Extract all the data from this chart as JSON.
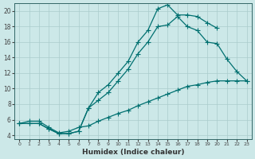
{
  "xlabel": "Humidex (Indice chaleur)",
  "bg_color": "#cce8e8",
  "grid_color": "#aacccc",
  "line_color": "#007070",
  "xlim": [
    -0.5,
    23.5
  ],
  "ylim": [
    3.5,
    21
  ],
  "xticks": [
    0,
    1,
    2,
    3,
    4,
    5,
    6,
    7,
    8,
    9,
    10,
    11,
    12,
    13,
    14,
    15,
    16,
    17,
    18,
    19,
    20,
    21,
    22,
    23
  ],
  "yticks": [
    4,
    6,
    8,
    10,
    12,
    14,
    16,
    18,
    20
  ],
  "curve1_x": [
    0,
    1,
    2,
    3,
    4,
    5,
    6,
    7,
    8,
    9,
    10,
    11,
    12,
    13,
    14,
    15,
    16,
    17,
    18,
    19,
    20
  ],
  "curve1_y": [
    5.5,
    5.5,
    5.5,
    4.8,
    4.2,
    4.2,
    4.5,
    7.5,
    9.5,
    10.5,
    12.0,
    13.5,
    16.0,
    17.5,
    20.3,
    20.8,
    19.5,
    19.5,
    19.3,
    18.5,
    17.8
  ],
  "curve2_x": [
    0,
    1,
    2,
    3,
    4,
    5,
    6,
    7,
    8,
    9,
    10,
    11,
    12,
    13,
    14,
    15,
    16,
    17,
    18,
    19,
    20,
    21,
    22,
    23
  ],
  "curve2_y": [
    5.5,
    5.5,
    5.5,
    4.8,
    4.2,
    4.2,
    4.5,
    7.5,
    8.5,
    9.5,
    11.0,
    12.5,
    14.5,
    16.0,
    18.0,
    18.2,
    19.3,
    18.0,
    17.5,
    16.0,
    15.8,
    13.8,
    12.2,
    11.0
  ],
  "curve3_x": [
    0,
    1,
    2,
    3,
    4,
    5,
    6,
    7,
    8,
    9,
    10,
    11,
    12,
    13,
    14,
    15,
    16,
    17,
    18,
    19,
    20,
    21,
    22,
    23
  ],
  "curve3_y": [
    5.5,
    5.8,
    5.8,
    5.0,
    4.3,
    4.5,
    5.0,
    5.2,
    5.8,
    6.3,
    6.8,
    7.2,
    7.8,
    8.3,
    8.8,
    9.3,
    9.8,
    10.3,
    10.5,
    10.8,
    11.0,
    11.0,
    11.0,
    11.0
  ]
}
